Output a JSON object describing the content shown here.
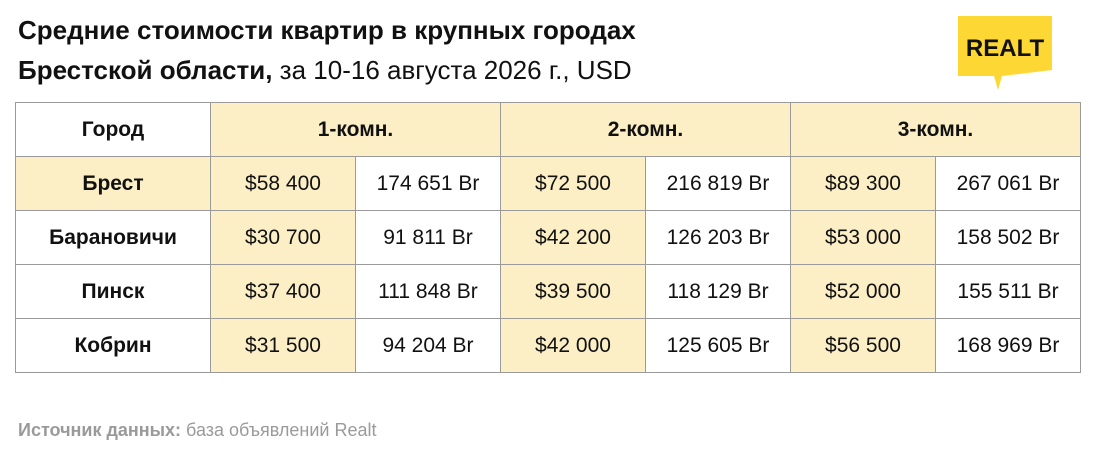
{
  "header": {
    "title_line1": "Средние стоимости квартир в крупных городах",
    "title_line2_bold": "Брестской области,",
    "title_line2_rest": "за 10-16 августа 2026 г., USD",
    "logo": "REALT"
  },
  "table": {
    "header": [
      "Город",
      "1-комн.",
      "2-комн.",
      "3-комн."
    ],
    "rows": [
      [
        "Брест",
        "$58 400",
        "174 651 Br",
        "$72 500",
        "216 819 Br",
        "$89 300",
        "267 061 Br"
      ],
      [
        "Барановичи",
        "$30 700",
        "91 811 Br",
        "$42 200",
        "126 203 Br",
        "$53 000",
        "158 502 Br"
      ],
      [
        "Пинск",
        "$37 400",
        "111 848 Br",
        "$39 500",
        "118 129 Br",
        "$52 000",
        "155 511 Br"
      ],
      [
        "Кобрин",
        "$31 500",
        "94 204 Br",
        "$42 000",
        "125 605 Br",
        "$56 500",
        "168 969 Br"
      ]
    ]
  },
  "footer": {
    "source_label": "Источник данных:",
    "source_text": "база объявлений Realt"
  }
}
